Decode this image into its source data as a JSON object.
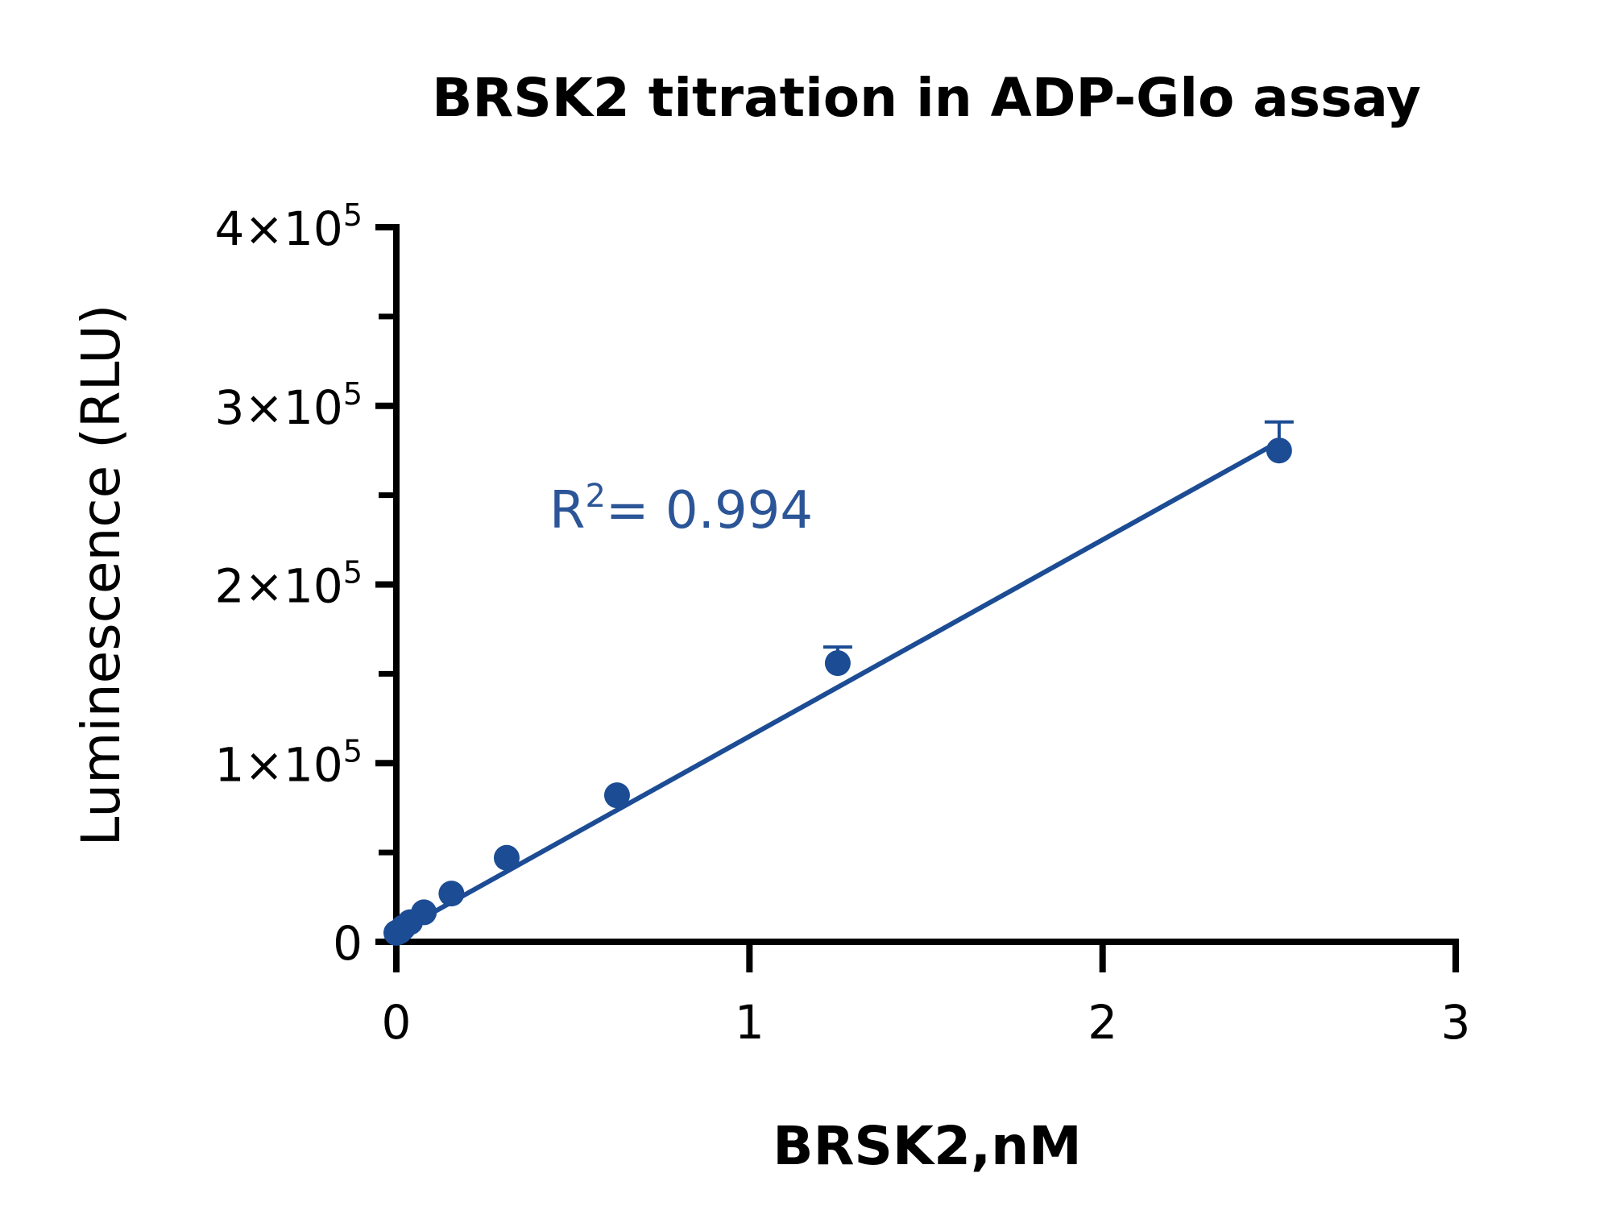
{
  "chart_data": {
    "type": "scatter",
    "title": "BRSK2 titration in ADP-Glo assay",
    "xlabel": "BRSK2,nM",
    "ylabel": "Luminescence (RLU)",
    "xlim": [
      0,
      3
    ],
    "ylim": [
      0,
      400000
    ],
    "x_ticks": [
      0,
      1,
      2,
      3
    ],
    "x_tick_labels": [
      "0",
      "1",
      "2",
      "3"
    ],
    "y_ticks": [
      0,
      100000,
      200000,
      300000,
      400000
    ],
    "y_tick_labels": [
      {
        "base": "0",
        "exp": ""
      },
      {
        "base": "1×10",
        "exp": "5"
      },
      {
        "base": "2×10",
        "exp": "5"
      },
      {
        "base": "3×10",
        "exp": "5"
      },
      {
        "base": "4×10",
        "exp": "5"
      }
    ],
    "y_minor_ticks": [
      50000,
      150000,
      250000,
      350000
    ],
    "grid": false,
    "color": "#1c4c94",
    "points": [
      {
        "x": 0,
        "y": 5000,
        "err": 0
      },
      {
        "x": 0.0098,
        "y": 6000,
        "err": 0
      },
      {
        "x": 0.0195,
        "y": 8000,
        "err": 0
      },
      {
        "x": 0.039,
        "y": 11000,
        "err": 0
      },
      {
        "x": 0.078,
        "y": 16500,
        "err": 0
      },
      {
        "x": 0.156,
        "y": 27000,
        "err": 0
      },
      {
        "x": 0.3125,
        "y": 47000,
        "err": 0
      },
      {
        "x": 0.625,
        "y": 82000,
        "err": 0
      },
      {
        "x": 1.25,
        "y": 156000,
        "err": 9000
      },
      {
        "x": 2.5,
        "y": 275000,
        "err": 16000
      }
    ],
    "fit": {
      "type": "linear",
      "x_range": [
        0,
        2.5
      ],
      "slope": 110000,
      "intercept": 5000
    },
    "annotation": {
      "prefix": "R",
      "sup": "2",
      "text": "= 0.994"
    }
  }
}
